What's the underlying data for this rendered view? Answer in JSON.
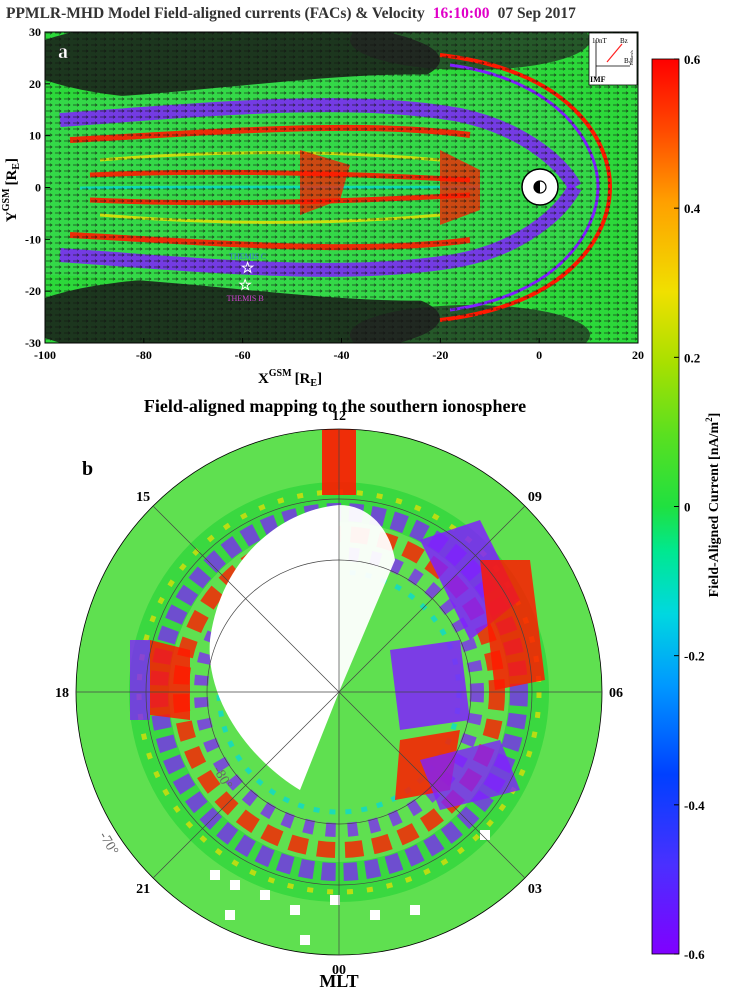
{
  "header": {
    "title_left": "PPMLR-MHD Model  Field-aligned currents (FACs) & Velocity",
    "time": "16:10:00",
    "date": "07 Sep 2017",
    "time_color": "#e000c8"
  },
  "chart_data": [
    {
      "type": "heatmap",
      "panel_label": "a",
      "xlabel_main": "X",
      "xlabel_sup": "GSM",
      "xlabel_unit": "[R",
      "xlabel_unit_sub": "E",
      "xlabel_unit_close": "]",
      "ylabel_main": "Y",
      "ylabel_sup": "GSM",
      "ylabel_unit": "[R",
      "ylabel_unit_sub": "E",
      "ylabel_unit_close": "]",
      "xlim": [
        -100,
        20
      ],
      "ylim": [
        -30,
        30
      ],
      "xticks": [
        -100,
        -80,
        -60,
        -40,
        -20,
        0,
        20
      ],
      "yticks": [
        30,
        20,
        10,
        0,
        -10,
        -20,
        -30
      ],
      "xtick_labels": [
        "-100",
        "-80",
        "-60",
        "-40",
        "-20",
        "0",
        "20"
      ],
      "ytick_labels": [
        "30",
        "20",
        "10",
        "0",
        "-10",
        "-20",
        "-30"
      ],
      "markers": [
        {
          "name": "THEMIS C",
          "x": -59,
          "y": -15.5,
          "color": "#3a78d8"
        },
        {
          "name": "THEMIS B",
          "x": -59.5,
          "y": -18.8,
          "color": "#d040d0"
        }
      ],
      "imf_inset": {
        "scale_label": "10nT",
        "bz_label": "Bz",
        "by_label": "B",
        "by_sub": "Y",
        "side_label": "100km/s",
        "bottom_label": "IMF"
      }
    },
    {
      "type": "heatmap",
      "panel_label": "b",
      "title": "Field-aligned mapping to the southern ionosphere",
      "projection": "polar",
      "mlt_labels": [
        {
          "text": "12",
          "mlt": 12
        },
        {
          "text": "09",
          "mlt": 9
        },
        {
          "text": "06",
          "mlt": 6
        },
        {
          "text": "03",
          "mlt": 3
        },
        {
          "text": "00",
          "mlt": 0
        },
        {
          "text": "21",
          "mlt": 21
        },
        {
          "text": "18",
          "mlt": 18
        },
        {
          "text": "15",
          "mlt": 15
        }
      ],
      "lat_labels": [
        {
          "text": "-80°",
          "lat": -80
        },
        {
          "text": "-70°",
          "lat": -70
        }
      ],
      "xlabel": "MLT"
    }
  ],
  "colorbar": {
    "label": "Field-Aligned Current [nA/m",
    "label_sup": "2",
    "label_close": "]",
    "range": [
      -0.6,
      0.6
    ],
    "ticks": [
      {
        "value": 0.6,
        "label": "0.6"
      },
      {
        "value": 0.4,
        "label": "0.4"
      },
      {
        "value": 0.2,
        "label": "0.2"
      },
      {
        "value": 0,
        "label": "0"
      },
      {
        "value": -0.2,
        "label": "-0.2"
      },
      {
        "value": -0.4,
        "label": "-0.4"
      },
      {
        "value": -0.6,
        "label": "-0.6"
      }
    ],
    "colors": [
      "#8000ff",
      "#5a20ff",
      "#0040ff",
      "#0090ff",
      "#00d0e0",
      "#00e890",
      "#28e040",
      "#70e020",
      "#b8e000",
      "#f0e000",
      "#ff9800",
      "#ff4000",
      "#ff0000"
    ]
  }
}
